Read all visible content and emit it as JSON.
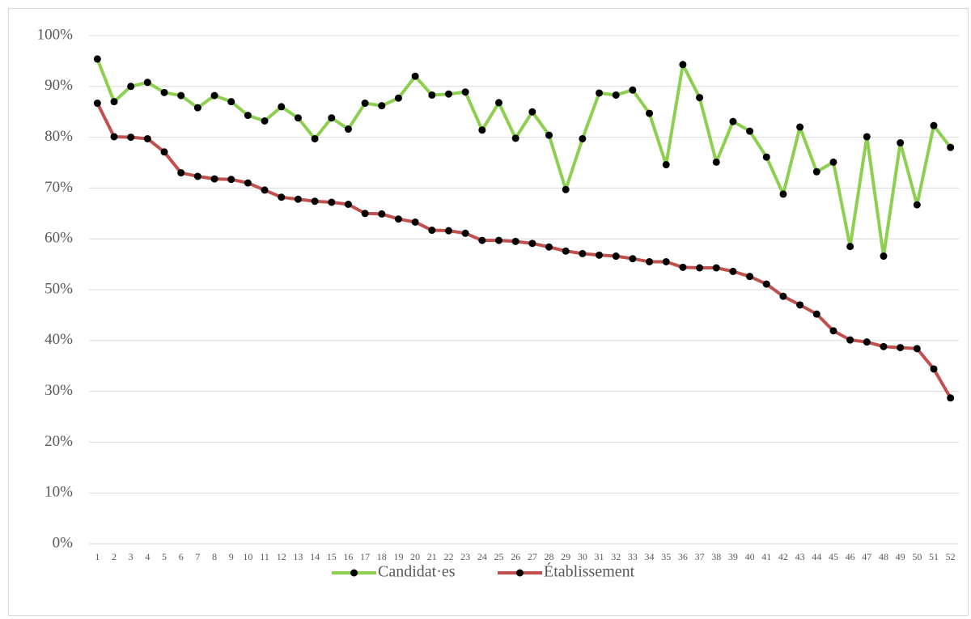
{
  "chart_data": {
    "type": "line",
    "categories": [
      "1",
      "2",
      "3",
      "4",
      "5",
      "6",
      "7",
      "8",
      "9",
      "10",
      "11",
      "12",
      "13",
      "14",
      "15",
      "16",
      "17",
      "18",
      "19",
      "20",
      "21",
      "22",
      "23",
      "24",
      "25",
      "26",
      "27",
      "28",
      "29",
      "30",
      "31",
      "32",
      "33",
      "34",
      "35",
      "36",
      "37",
      "38",
      "39",
      "40",
      "41",
      "42",
      "43",
      "44",
      "45",
      "46",
      "47",
      "48",
      "49",
      "50",
      "51",
      "52"
    ],
    "series": [
      {
        "name": "Candidat·es",
        "color": "#8dcf4f",
        "values": [
          95.4,
          87,
          90,
          90.8,
          88.8,
          88.2,
          85.8,
          88.2,
          87,
          84.3,
          83.2,
          86,
          83.8,
          79.7,
          83.8,
          81.6,
          86.7,
          86.2,
          87.7,
          92,
          88.3,
          88.5,
          88.9,
          81.4,
          86.8,
          79.8,
          85,
          80.4,
          69.7,
          79.7,
          88.7,
          88.3,
          89.3,
          84.7,
          74.6,
          94.3,
          87.8,
          75.1,
          83.1,
          81.2,
          76.1,
          68.8,
          82,
          73.2,
          75.1,
          58.5,
          80.1,
          56.6,
          78.9,
          66.7,
          82.3,
          78
        ]
      },
      {
        "name": "Établissement",
        "color": "#c0504d",
        "values": [
          86.7,
          80.1,
          80,
          79.7,
          77.1,
          73,
          72.3,
          71.8,
          71.7,
          71,
          69.6,
          68.2,
          67.8,
          67.4,
          67.2,
          66.8,
          65,
          64.9,
          63.9,
          63.3,
          61.7,
          61.6,
          61.1,
          59.7,
          59.7,
          59.5,
          59.1,
          58.4,
          57.6,
          57.1,
          56.8,
          56.6,
          56.1,
          55.5,
          55.5,
          54.4,
          54.3,
          54.3,
          53.6,
          52.6,
          51.1,
          48.7,
          47,
          45.2,
          41.9,
          40.1,
          39.7,
          38.8,
          38.6,
          38.4,
          34.4,
          28.7
        ]
      }
    ],
    "ylim": [
      0,
      100
    ],
    "yticks": [
      {
        "value": 0,
        "label": "0%"
      },
      {
        "value": 10,
        "label": "10%"
      },
      {
        "value": 20,
        "label": "20%"
      },
      {
        "value": 30,
        "label": "30%"
      },
      {
        "value": 40,
        "label": "40%"
      },
      {
        "value": 50,
        "label": "50%"
      },
      {
        "value": 60,
        "label": "60%"
      },
      {
        "value": 70,
        "label": "70%"
      },
      {
        "value": 80,
        "label": "80%"
      },
      {
        "value": 90,
        "label": "90%"
      },
      {
        "value": 100,
        "label": "100%"
      }
    ],
    "grid": true,
    "legend": "bottom"
  }
}
